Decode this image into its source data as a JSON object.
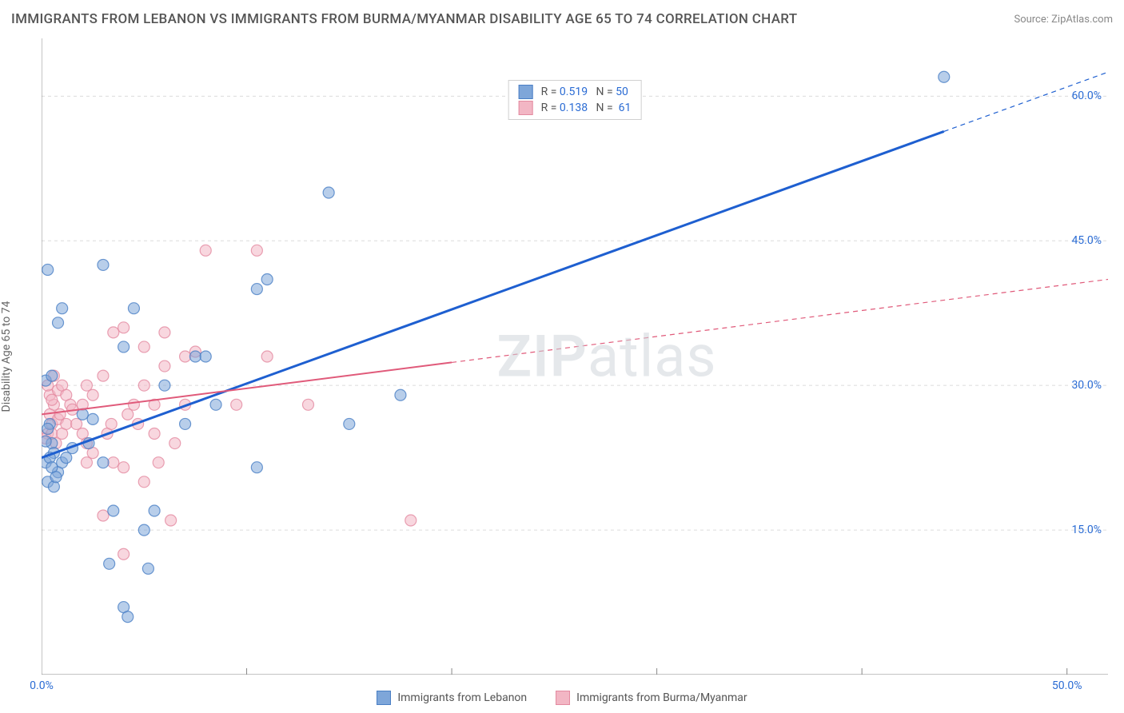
{
  "title": "IMMIGRANTS FROM LEBANON VS IMMIGRANTS FROM BURMA/MYANMAR DISABILITY AGE 65 TO 74 CORRELATION CHART",
  "source": "Source: ZipAtlas.com",
  "y_axis_label": "Disability Age 65 to 74",
  "watermark_a": "ZIP",
  "watermark_b": "atlas",
  "chart": {
    "type": "scatter",
    "xlim": [
      0,
      52
    ],
    "ylim": [
      0,
      66
    ],
    "x_ticks": [
      0,
      50
    ],
    "x_tick_labels": [
      "0.0%",
      "50.0%"
    ],
    "x_tick_color": "#2b6cd4",
    "y_ticks": [
      15,
      30,
      45,
      60
    ],
    "y_tick_labels": [
      "15.0%",
      "30.0%",
      "45.0%",
      "60.0%"
    ],
    "y_tick_color": "#2b6cd4",
    "x_minor_tick_step": 10,
    "background_color": "#ffffff",
    "grid_color": "#dcdcdc",
    "grid_dash": "4 4",
    "axis_color": "#888888",
    "marker_radius": 7,
    "marker_opacity": 0.55,
    "series": [
      {
        "name": "Immigrants from Lebanon",
        "fill": "#7ea6d9",
        "stroke": "#4a7fc5",
        "line_color": "#1e5fd0",
        "line_width": 3,
        "R_label": "R = ",
        "R": "0.519",
        "N_label": "   N = ",
        "N": "50",
        "regression": {
          "x1": 0,
          "y1": 22.5,
          "x2": 52,
          "y2": 62.5,
          "solid_to_x": 44
        },
        "points": [
          [
            0.2,
            22
          ],
          [
            0.3,
            20
          ],
          [
            0.5,
            24
          ],
          [
            0.4,
            26
          ],
          [
            0.6,
            23
          ],
          [
            0.8,
            21
          ],
          [
            0.4,
            22.5
          ],
          [
            0.2,
            24.2
          ],
          [
            0.3,
            25.5
          ],
          [
            0.5,
            21.5
          ],
          [
            0.6,
            19.5
          ],
          [
            0.7,
            20.5
          ],
          [
            0.2,
            30.5
          ],
          [
            1.0,
            22
          ],
          [
            1.2,
            22.5
          ],
          [
            1.5,
            23.5
          ],
          [
            0.5,
            31
          ],
          [
            0.8,
            36.5
          ],
          [
            1.0,
            38
          ],
          [
            0.3,
            42
          ],
          [
            2.0,
            27
          ],
          [
            2.3,
            24
          ],
          [
            2.5,
            26.5
          ],
          [
            3.0,
            42.5
          ],
          [
            3.0,
            22
          ],
          [
            3.3,
            11.5
          ],
          [
            3.5,
            17
          ],
          [
            4.0,
            34
          ],
          [
            4.5,
            38
          ],
          [
            4.0,
            7
          ],
          [
            4.2,
            6
          ],
          [
            5.0,
            15
          ],
          [
            5.2,
            11
          ],
          [
            5.5,
            17
          ],
          [
            6.0,
            30
          ],
          [
            7.0,
            26
          ],
          [
            7.5,
            33
          ],
          [
            8.0,
            33
          ],
          [
            8.5,
            28
          ],
          [
            10.5,
            40
          ],
          [
            10.5,
            21.5
          ],
          [
            11.0,
            41
          ],
          [
            14.0,
            50
          ],
          [
            15.0,
            26
          ],
          [
            17.5,
            29
          ],
          [
            44.0,
            62
          ]
        ]
      },
      {
        "name": "Immigrants from Burma/Myanmar",
        "fill": "#f2b6c4",
        "stroke": "#e38aa0",
        "line_color": "#e05a7a",
        "line_width": 2,
        "R_label": "R = ",
        "R": "0.138",
        "N_label": "   N =  ",
        "N": "61",
        "regression": {
          "x1": 0,
          "y1": 27,
          "x2": 52,
          "y2": 41,
          "solid_to_x": 20
        },
        "points": [
          [
            0.3,
            25
          ],
          [
            0.5,
            26
          ],
          [
            0.4,
            27
          ],
          [
            0.6,
            28
          ],
          [
            0.2,
            24.5
          ],
          [
            0.8,
            26.5
          ],
          [
            0.5,
            25
          ],
          [
            0.7,
            24
          ],
          [
            0.9,
            27
          ],
          [
            1.0,
            25
          ],
          [
            1.2,
            26
          ],
          [
            0.4,
            29
          ],
          [
            0.3,
            30
          ],
          [
            0.6,
            31
          ],
          [
            0.5,
            28.5
          ],
          [
            0.8,
            29.5
          ],
          [
            1.0,
            30
          ],
          [
            1.2,
            29
          ],
          [
            1.4,
            28
          ],
          [
            1.5,
            27.5
          ],
          [
            1.7,
            26
          ],
          [
            2.0,
            25
          ],
          [
            2.2,
            24
          ],
          [
            2.0,
            28
          ],
          [
            2.2,
            30
          ],
          [
            2.5,
            29
          ],
          [
            2.2,
            22
          ],
          [
            2.5,
            23
          ],
          [
            3.0,
            31
          ],
          [
            3.0,
            16.5
          ],
          [
            3.2,
            25
          ],
          [
            3.4,
            26
          ],
          [
            3.5,
            22
          ],
          [
            3.5,
            35.5
          ],
          [
            4.0,
            36
          ],
          [
            4.0,
            21.5
          ],
          [
            4.2,
            27
          ],
          [
            4.5,
            28
          ],
          [
            4.0,
            12.5
          ],
          [
            4.7,
            26
          ],
          [
            5.0,
            30
          ],
          [
            5.0,
            20
          ],
          [
            5.5,
            25
          ],
          [
            5.5,
            28
          ],
          [
            5.0,
            34
          ],
          [
            5.7,
            22
          ],
          [
            6.0,
            32
          ],
          [
            6.0,
            35.5
          ],
          [
            6.3,
            16
          ],
          [
            6.5,
            24
          ],
          [
            7.0,
            28
          ],
          [
            7.0,
            33
          ],
          [
            7.5,
            33.5
          ],
          [
            8.0,
            44
          ],
          [
            9.5,
            28
          ],
          [
            10.5,
            44
          ],
          [
            11.0,
            33
          ],
          [
            13.0,
            28
          ],
          [
            18.0,
            16
          ]
        ]
      }
    ]
  },
  "bottom_legend": [
    {
      "label": "Immigrants from Lebanon",
      "fill": "#7ea6d9",
      "stroke": "#4a7fc5"
    },
    {
      "label": "Immigrants from Burma/Myanmar",
      "fill": "#f2b6c4",
      "stroke": "#e38aa0"
    }
  ]
}
